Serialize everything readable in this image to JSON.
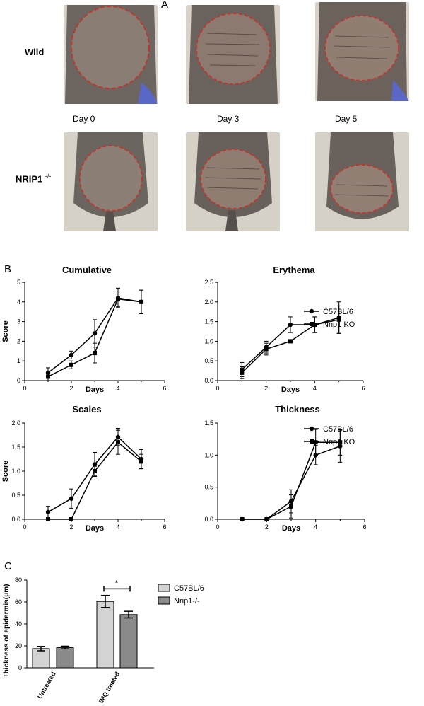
{
  "panel_a": {
    "letter": "A",
    "rows": [
      {
        "label": "Wild"
      },
      {
        "label": "NRIP1",
        "superscript": "-/-"
      }
    ],
    "days": [
      "Day 0",
      "Day 3",
      "Day 5"
    ]
  },
  "panel_b": {
    "letter": "B"
  },
  "panel_c": {
    "letter": "C"
  },
  "colors": {
    "c57": "#d4d4d4",
    "nrip": "#8a8a8a",
    "line": "#000000",
    "lesion": "#c0362c"
  },
  "chart_data": [
    {
      "type": "line",
      "title": "Cumulative",
      "xlabel": "Days",
      "ylabel": "Score",
      "xlim": [
        0,
        6
      ],
      "ylim": [
        0,
        5
      ],
      "xticks": [
        "0",
        "2",
        "4",
        "6"
      ],
      "yticks": [
        "0",
        "1",
        "2",
        "3",
        "4",
        "5"
      ],
      "series": [
        {
          "name": "C57BL/6",
          "marker": "circle",
          "x": [
            1,
            2,
            3,
            4,
            5
          ],
          "values": [
            0.4,
            1.3,
            2.4,
            4.2,
            4.0
          ],
          "err": [
            0.25,
            0.2,
            0.7,
            0.5,
            0.6
          ]
        },
        {
          "name": "Nrip1 KO",
          "marker": "square",
          "x": [
            1,
            2,
            3,
            4,
            5
          ],
          "values": [
            0.2,
            0.8,
            1.4,
            4.15,
            4.0
          ],
          "err": [
            0.2,
            0.2,
            0.5,
            0.4,
            0.6
          ]
        }
      ]
    },
    {
      "type": "line",
      "title": "Erythema",
      "xlabel": "Days",
      "ylabel": "",
      "xlim": [
        0,
        6
      ],
      "ylim": [
        0,
        2.5
      ],
      "xticks": [
        "0",
        "2",
        "4",
        "6"
      ],
      "yticks": [
        "0.0",
        "0.5",
        "1.0",
        "1.5",
        "2.0",
        "2.5"
      ],
      "legend": [
        "C57BL/6",
        "Nrip1 KO"
      ],
      "series": [
        {
          "name": "C57BL/6",
          "marker": "circle",
          "x": [
            1,
            2,
            3,
            4,
            5
          ],
          "values": [
            0.28,
            0.85,
            1.42,
            1.42,
            1.6
          ],
          "err": [
            0.18,
            0.15,
            0.2,
            0.2,
            0.4
          ]
        },
        {
          "name": "Nrip1 KO",
          "marker": "square",
          "x": [
            1,
            2,
            3,
            4,
            5
          ],
          "values": [
            0.2,
            0.8,
            1.0,
            1.42,
            1.55
          ],
          "err": [
            0.15,
            0.15,
            0.02,
            0.2,
            0.35
          ]
        }
      ]
    },
    {
      "type": "line",
      "title": "Scales",
      "xlabel": "Days",
      "ylabel": "Score",
      "xlim": [
        0,
        6
      ],
      "ylim": [
        0,
        2.0
      ],
      "xticks": [
        "0",
        "2",
        "4",
        "6"
      ],
      "yticks": [
        "0.0",
        "0.5",
        "1.0",
        "1.5",
        "2.0"
      ],
      "series": [
        {
          "name": "C57BL/6",
          "marker": "circle",
          "x": [
            1,
            2,
            3,
            4,
            5
          ],
          "values": [
            0.15,
            0.43,
            1.14,
            1.71,
            1.25
          ],
          "err": [
            0.12,
            0.2,
            0.25,
            0.18,
            0.2
          ]
        },
        {
          "name": "Nrip1 KO",
          "marker": "square",
          "x": [
            1,
            2,
            3,
            4,
            5
          ],
          "values": [
            0.0,
            0.0,
            1.0,
            1.6,
            1.2
          ],
          "err": [
            0.0,
            0.0,
            0.1,
            0.25,
            0.15
          ]
        }
      ]
    },
    {
      "type": "line",
      "title": "Thickness",
      "xlabel": "Days",
      "ylabel": "",
      "xlim": [
        0,
        6
      ],
      "ylim": [
        0,
        1.5
      ],
      "xticks": [
        "0",
        "2",
        "4",
        "6"
      ],
      "yticks": [
        "0.0",
        "0.5",
        "1.0",
        "1.5"
      ],
      "legend": [
        "C57BL/6",
        "Nrip1 KO"
      ],
      "series": [
        {
          "name": "C57BL/6",
          "marker": "circle",
          "x": [
            1,
            2,
            3,
            4,
            5
          ],
          "values": [
            0.0,
            0.0,
            0.28,
            1.0,
            1.14
          ],
          "err": [
            0.0,
            0.0,
            0.18,
            0.15,
            0.25
          ]
        },
        {
          "name": "Nrip1 KO",
          "marker": "square",
          "x": [
            1,
            2,
            3,
            4,
            5
          ],
          "values": [
            0.0,
            0.0,
            0.2,
            1.2,
            1.2
          ],
          "err": [
            0.0,
            0.0,
            0.18,
            0.2,
            0.2
          ]
        }
      ]
    },
    {
      "type": "bar",
      "title": "",
      "xlabel": "",
      "ylabel": "Thickness of epidermis(μm)",
      "ylim": [
        0,
        80
      ],
      "yticks": [
        "0",
        "20",
        "40",
        "60",
        "80"
      ],
      "categories": [
        "Untreated",
        "IMQ treated"
      ],
      "series": [
        {
          "name": "C57BL/6",
          "values": [
            17.5,
            60.5
          ],
          "err": [
            2,
            5.5
          ]
        },
        {
          "name": "Nrip1-/-",
          "values": [
            18.5,
            48.5
          ],
          "err": [
            1.2,
            3
          ]
        }
      ],
      "annotation": "*"
    }
  ]
}
